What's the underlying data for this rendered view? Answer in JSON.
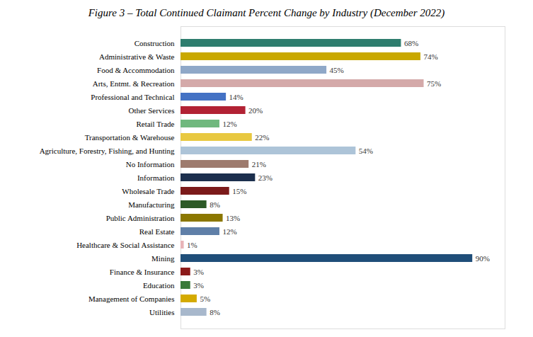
{
  "chart_data": {
    "type": "bar",
    "orientation": "horizontal",
    "title": "Figure 3 – Total Continued Claimant Percent Change by Industry (December 2022)",
    "categories": [
      "Construction",
      "Administrative & Waste",
      "Food & Accommodation",
      "Arts, Entmt. & Recreation",
      "Professional and Technical",
      "Other Services",
      "Retail Trade",
      "Transportation & Warehouse",
      "Agriculture, Forestry, Fishing, and Hunting",
      "No Information",
      "Information",
      "Wholesale Trade",
      "Manufacturing",
      "Public Administration",
      "Real Estate",
      "Healthcare & Social Assistance",
      "Mining",
      "Finance & Insurance",
      "Education",
      "Management of Companies",
      "Utilities"
    ],
    "values": [
      68,
      74,
      45,
      75,
      14,
      20,
      12,
      22,
      54,
      21,
      23,
      15,
      8,
      13,
      12,
      1,
      90,
      3,
      3,
      5,
      8
    ],
    "value_labels": [
      "68%",
      "74%",
      "45%",
      "75%",
      "14%",
      "20%",
      "12%",
      "22%",
      "54%",
      "21%",
      "23%",
      "15%",
      "8%",
      "13%",
      "12%",
      "1%",
      "90%",
      "3%",
      "3%",
      "5%",
      "8%"
    ],
    "colors": [
      "#2e7d6e",
      "#c9a800",
      "#8fa8c8",
      "#d4a9a9",
      "#4472c4",
      "#b22234",
      "#70b87e",
      "#e8c840",
      "#adc4d8",
      "#9e7b6e",
      "#1c2f4d",
      "#7b1a1a",
      "#2d5a27",
      "#8b7700",
      "#5f7fa8",
      "#e8b4b8",
      "#1f4e79",
      "#8b1a1a",
      "#3a7a3a",
      "#d4aa00",
      "#a8b8cc"
    ],
    "xlim": [
      0,
      100
    ],
    "data_labels": true,
    "tick_labels": "y"
  }
}
